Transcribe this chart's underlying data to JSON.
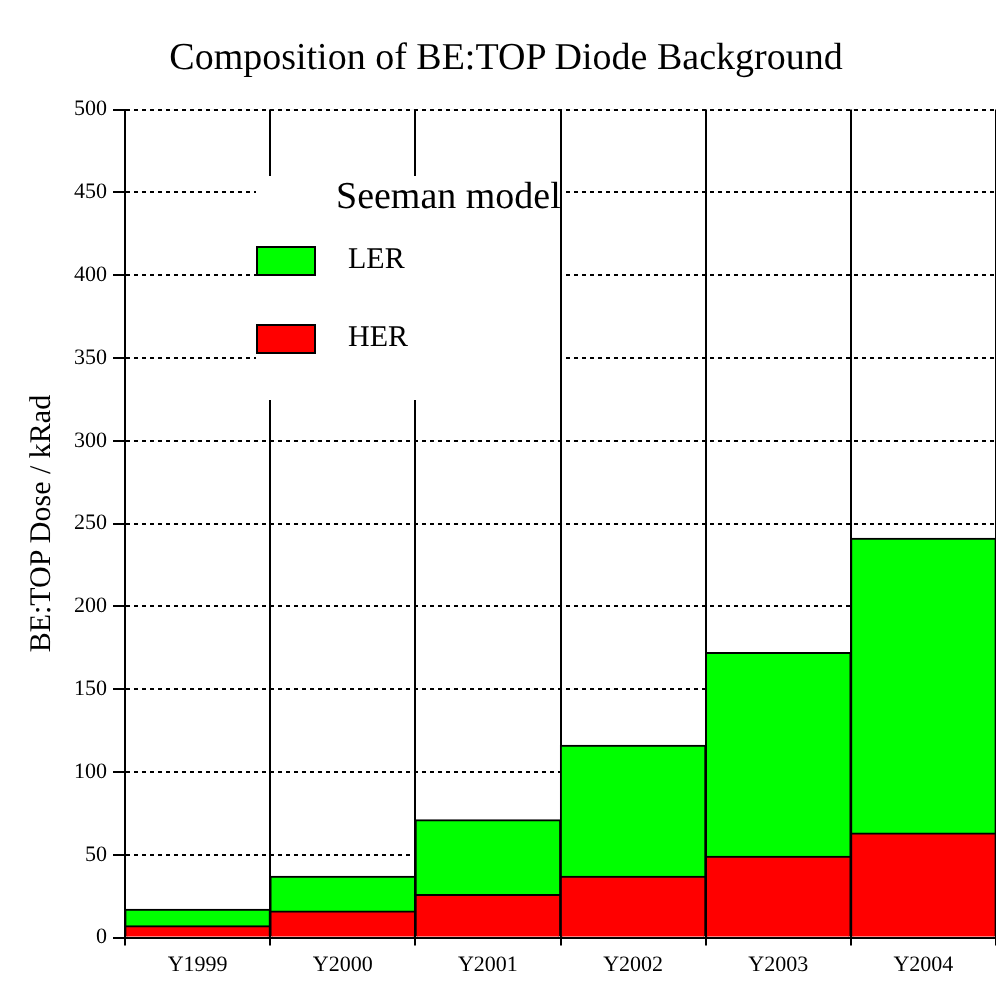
{
  "chart_data": {
    "type": "bar",
    "title": "Composition of BE:TOP Diode Background",
    "ylabel": "BE:TOP Dose / kRad",
    "legend_title": "Seeman model",
    "categories": [
      "Y1999",
      "Y2000",
      "Y2001",
      "Y2002",
      "Y2003",
      "Y2004"
    ],
    "series": [
      {
        "name": "HER",
        "color": "#ff0000",
        "values": [
          7,
          16,
          26,
          37,
          49,
          63
        ]
      },
      {
        "name": "LER",
        "color": "#00ff00",
        "values": [
          10,
          21,
          45,
          79,
          123,
          178
        ]
      }
    ],
    "stacked": true,
    "ylim": [
      0,
      500
    ],
    "yticks": [
      0,
      50,
      100,
      150,
      200,
      250,
      300,
      350,
      400,
      450,
      500
    ],
    "grid": true,
    "legend": "top left"
  }
}
